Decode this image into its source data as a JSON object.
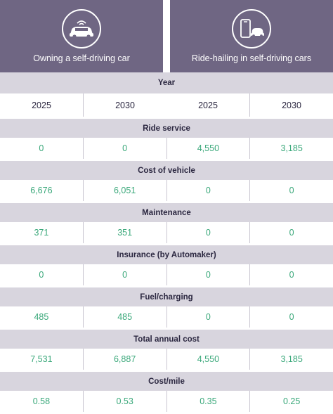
{
  "header": {
    "left_label": "Owning a self-driving car",
    "right_label": "Ride-hailing in self-driving cars",
    "left_icon": "self-driving-car-icon",
    "right_icon": "phone-ride-hailing-icon"
  },
  "colors": {
    "header_bg": "#6f6683",
    "band_bg": "#d8d5de",
    "value_green": "#3aa87a",
    "text_dark": "#2b2740"
  },
  "table": {
    "year_label": "Year",
    "years": [
      "2025",
      "2030",
      "2025",
      "2030"
    ],
    "sections": [
      {
        "label": "Ride service",
        "values": [
          "0",
          "0",
          "4,550",
          "3,185"
        ]
      },
      {
        "label": "Cost of vehicle",
        "values": [
          "6,676",
          "6,051",
          "0",
          "0"
        ]
      },
      {
        "label": "Maintenance",
        "values": [
          "371",
          "351",
          "0",
          "0"
        ]
      },
      {
        "label": "Insurance (by Automaker)",
        "values": [
          "0",
          "0",
          "0",
          "0"
        ]
      },
      {
        "label": "Fuel/charging",
        "values": [
          "485",
          "485",
          "0",
          "0"
        ]
      },
      {
        "label": "Total annual cost",
        "values": [
          "7,531",
          "6,887",
          "4,550",
          "3,185"
        ]
      },
      {
        "label": "Cost/mile",
        "values": [
          "0.58",
          "0.53",
          "0.35",
          "0.25"
        ]
      }
    ]
  }
}
